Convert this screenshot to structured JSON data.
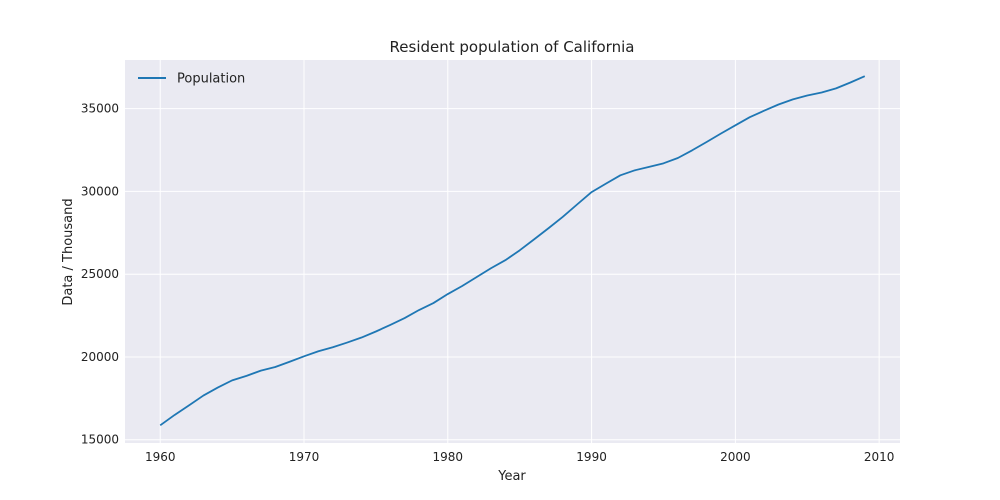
{
  "chart_data": {
    "type": "line",
    "title": "Resident population of California",
    "xlabel": "Year",
    "ylabel": "Data / Thousand",
    "xlim": [
      1957.55,
      2011.45
    ],
    "ylim": [
      14802,
      37940
    ],
    "xticks": [
      1960,
      1970,
      1980,
      1990,
      2000,
      2010
    ],
    "yticks": [
      15000,
      20000,
      25000,
      30000,
      35000
    ],
    "grid": true,
    "legend_position": "top-left",
    "series": [
      {
        "name": "Population",
        "color": "#1f77b4",
        "x": [
          1960,
          1961,
          1962,
          1963,
          1964,
          1965,
          1966,
          1967,
          1968,
          1969,
          1970,
          1971,
          1972,
          1973,
          1974,
          1975,
          1976,
          1977,
          1978,
          1979,
          1980,
          1981,
          1982,
          1983,
          1984,
          1985,
          1986,
          1987,
          1988,
          1989,
          1990,
          1991,
          1992,
          1993,
          1994,
          1995,
          1996,
          1997,
          1998,
          1999,
          2000,
          2001,
          2002,
          2003,
          2004,
          2005,
          2006,
          2007,
          2008,
          2009
        ],
        "values": [
          15870,
          16497,
          17072,
          17668,
          18151,
          18585,
          18858,
          19176,
          19394,
          19711,
          20039,
          20346,
          20585,
          20869,
          21174,
          21538,
          21936,
          22352,
          22836,
          23257,
          23801,
          24286,
          24820,
          25360,
          25844,
          26441,
          27102,
          27777,
          28464,
          29218,
          29960,
          30471,
          30975,
          31275,
          31484,
          31697,
          32019,
          32486,
          32988,
          33499,
          33994,
          34486,
          34876,
          35252,
          35559,
          35795,
          35979,
          36227,
          36580,
          36962
        ]
      }
    ]
  },
  "colors": {
    "plot_background": "#eaeaf2",
    "grid": "#ffffff",
    "line": "#1f77b4"
  }
}
